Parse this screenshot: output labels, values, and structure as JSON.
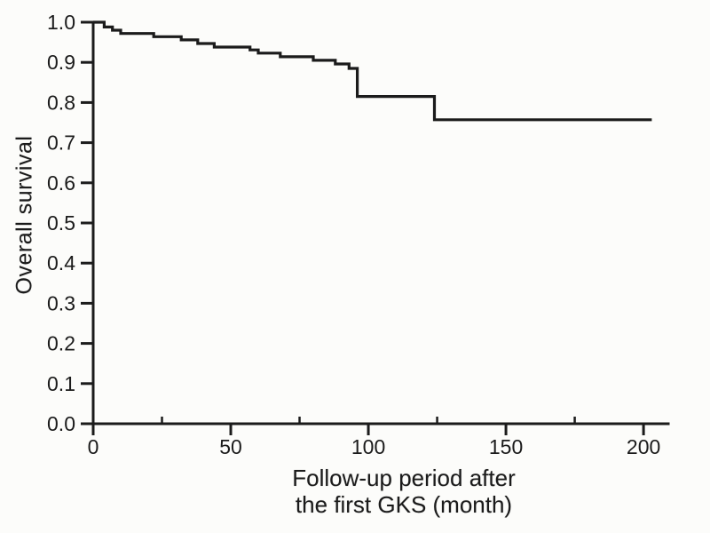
{
  "figure": {
    "background": "#fcfcfa",
    "ink_color": "#1b1b1b"
  },
  "chart_data": {
    "type": "line",
    "subtype": "kaplan_meier_step",
    "title": "",
    "ylabel": "Overall survival",
    "xlabel": "Follow-up period after the first GKS (month)",
    "xlabel_lines": [
      "Follow-up period after",
      "the first GKS (month)"
    ],
    "xlim": [
      0,
      209
    ],
    "ylim": [
      0.0,
      1.0
    ],
    "grid": false,
    "legend": "none",
    "x_tick_values": [
      0,
      50,
      100,
      150,
      200
    ],
    "x_tick_labels": [
      "0",
      "50",
      "100",
      "150",
      "200"
    ],
    "x_minor_tick_values": [
      25,
      75,
      125,
      175
    ],
    "y_tick_values": [
      1.0,
      0.9,
      0.8,
      0.7,
      0.6,
      0.5,
      0.4,
      0.3,
      0.2,
      0.1,
      0.0
    ],
    "y_tick_labels": [
      "1.0",
      "0.9",
      "0.8",
      "0.7",
      "0.6",
      "0.5",
      "0.4",
      "0.3",
      "0.2",
      "0.1",
      "0.0"
    ],
    "series": [
      {
        "name": "Overall survival",
        "step": "post",
        "x": [
          0,
          4,
          7,
          10,
          22,
          32,
          38,
          44,
          57,
          60,
          68,
          80,
          88,
          93,
          96,
          124,
          203
        ],
        "y": [
          1.0,
          0.988,
          0.98,
          0.972,
          0.964,
          0.956,
          0.947,
          0.938,
          0.931,
          0.923,
          0.914,
          0.905,
          0.896,
          0.885,
          0.815,
          0.757,
          0.757
        ]
      }
    ]
  }
}
